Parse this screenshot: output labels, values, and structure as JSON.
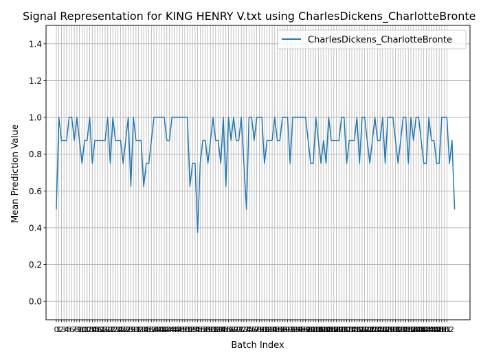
{
  "chart_data": {
    "type": "line",
    "title": "Signal Representation for KING HENRY V.txt using CharlesDickens_CharlotteBronte",
    "xlabel": "Batch Index",
    "ylabel": "Mean Prediction Value",
    "xlim": [
      -4,
      161
    ],
    "ylim": [
      -0.1,
      1.5
    ],
    "yticks": [
      0.0,
      0.2,
      0.4,
      0.6,
      0.8,
      1.0,
      1.2,
      1.4
    ],
    "x_tick_label_count": 153,
    "grid": true,
    "legend_position": "top-right",
    "series": [
      {
        "name": "CharlesDickens_CharlotteBronte",
        "color": "#1f77b4",
        "values": [
          0.5,
          1.0,
          0.875,
          0.875,
          0.875,
          1.0,
          1.0,
          0.875,
          1.0,
          0.875,
          0.75,
          0.875,
          0.875,
          1.0,
          0.75,
          0.875,
          0.875,
          0.875,
          0.875,
          0.875,
          1.0,
          0.75,
          1.0,
          0.875,
          0.875,
          0.875,
          0.75,
          0.875,
          1.0,
          0.625,
          1.0,
          0.875,
          0.875,
          0.875,
          0.625,
          0.75,
          0.75,
          0.875,
          1.0,
          1.0,
          1.0,
          1.0,
          1.0,
          0.875,
          0.875,
          1.0,
          1.0,
          1.0,
          1.0,
          1.0,
          1.0,
          1.0,
          0.625,
          0.75,
          0.75,
          0.375,
          0.75,
          0.875,
          0.875,
          0.75,
          0.875,
          1.0,
          0.875,
          0.875,
          0.75,
          1.0,
          0.625,
          1.0,
          0.875,
          1.0,
          0.875,
          0.875,
          1.0,
          0.75,
          0.5,
          1.0,
          1.0,
          0.875,
          1.0,
          1.0,
          1.0,
          0.75,
          0.875,
          0.875,
          0.875,
          1.0,
          0.875,
          0.875,
          1.0,
          1.0,
          1.0,
          0.75,
          1.0,
          1.0,
          1.0,
          1.0,
          1.0,
          1.0,
          0.875,
          0.75,
          0.75,
          1.0,
          0.875,
          0.75,
          0.875,
          0.75,
          1.0,
          0.875,
          0.875,
          0.875,
          0.875,
          1.0,
          1.0,
          0.75,
          0.875,
          0.875,
          0.875,
          1.0,
          0.75,
          1.0,
          1.0,
          0.875,
          0.75,
          0.875,
          1.0,
          0.875,
          0.875,
          1.0,
          0.75,
          1.0,
          1.0,
          1.0,
          0.875,
          0.75,
          0.875,
          1.0,
          1.0,
          0.75,
          1.0,
          0.875,
          1.0,
          1.0,
          0.875,
          0.75,
          0.75,
          1.0,
          0.875,
          0.875,
          0.75,
          0.75,
          1.0,
          1.0,
          1.0,
          0.75,
          0.875,
          0.5
        ]
      }
    ]
  }
}
